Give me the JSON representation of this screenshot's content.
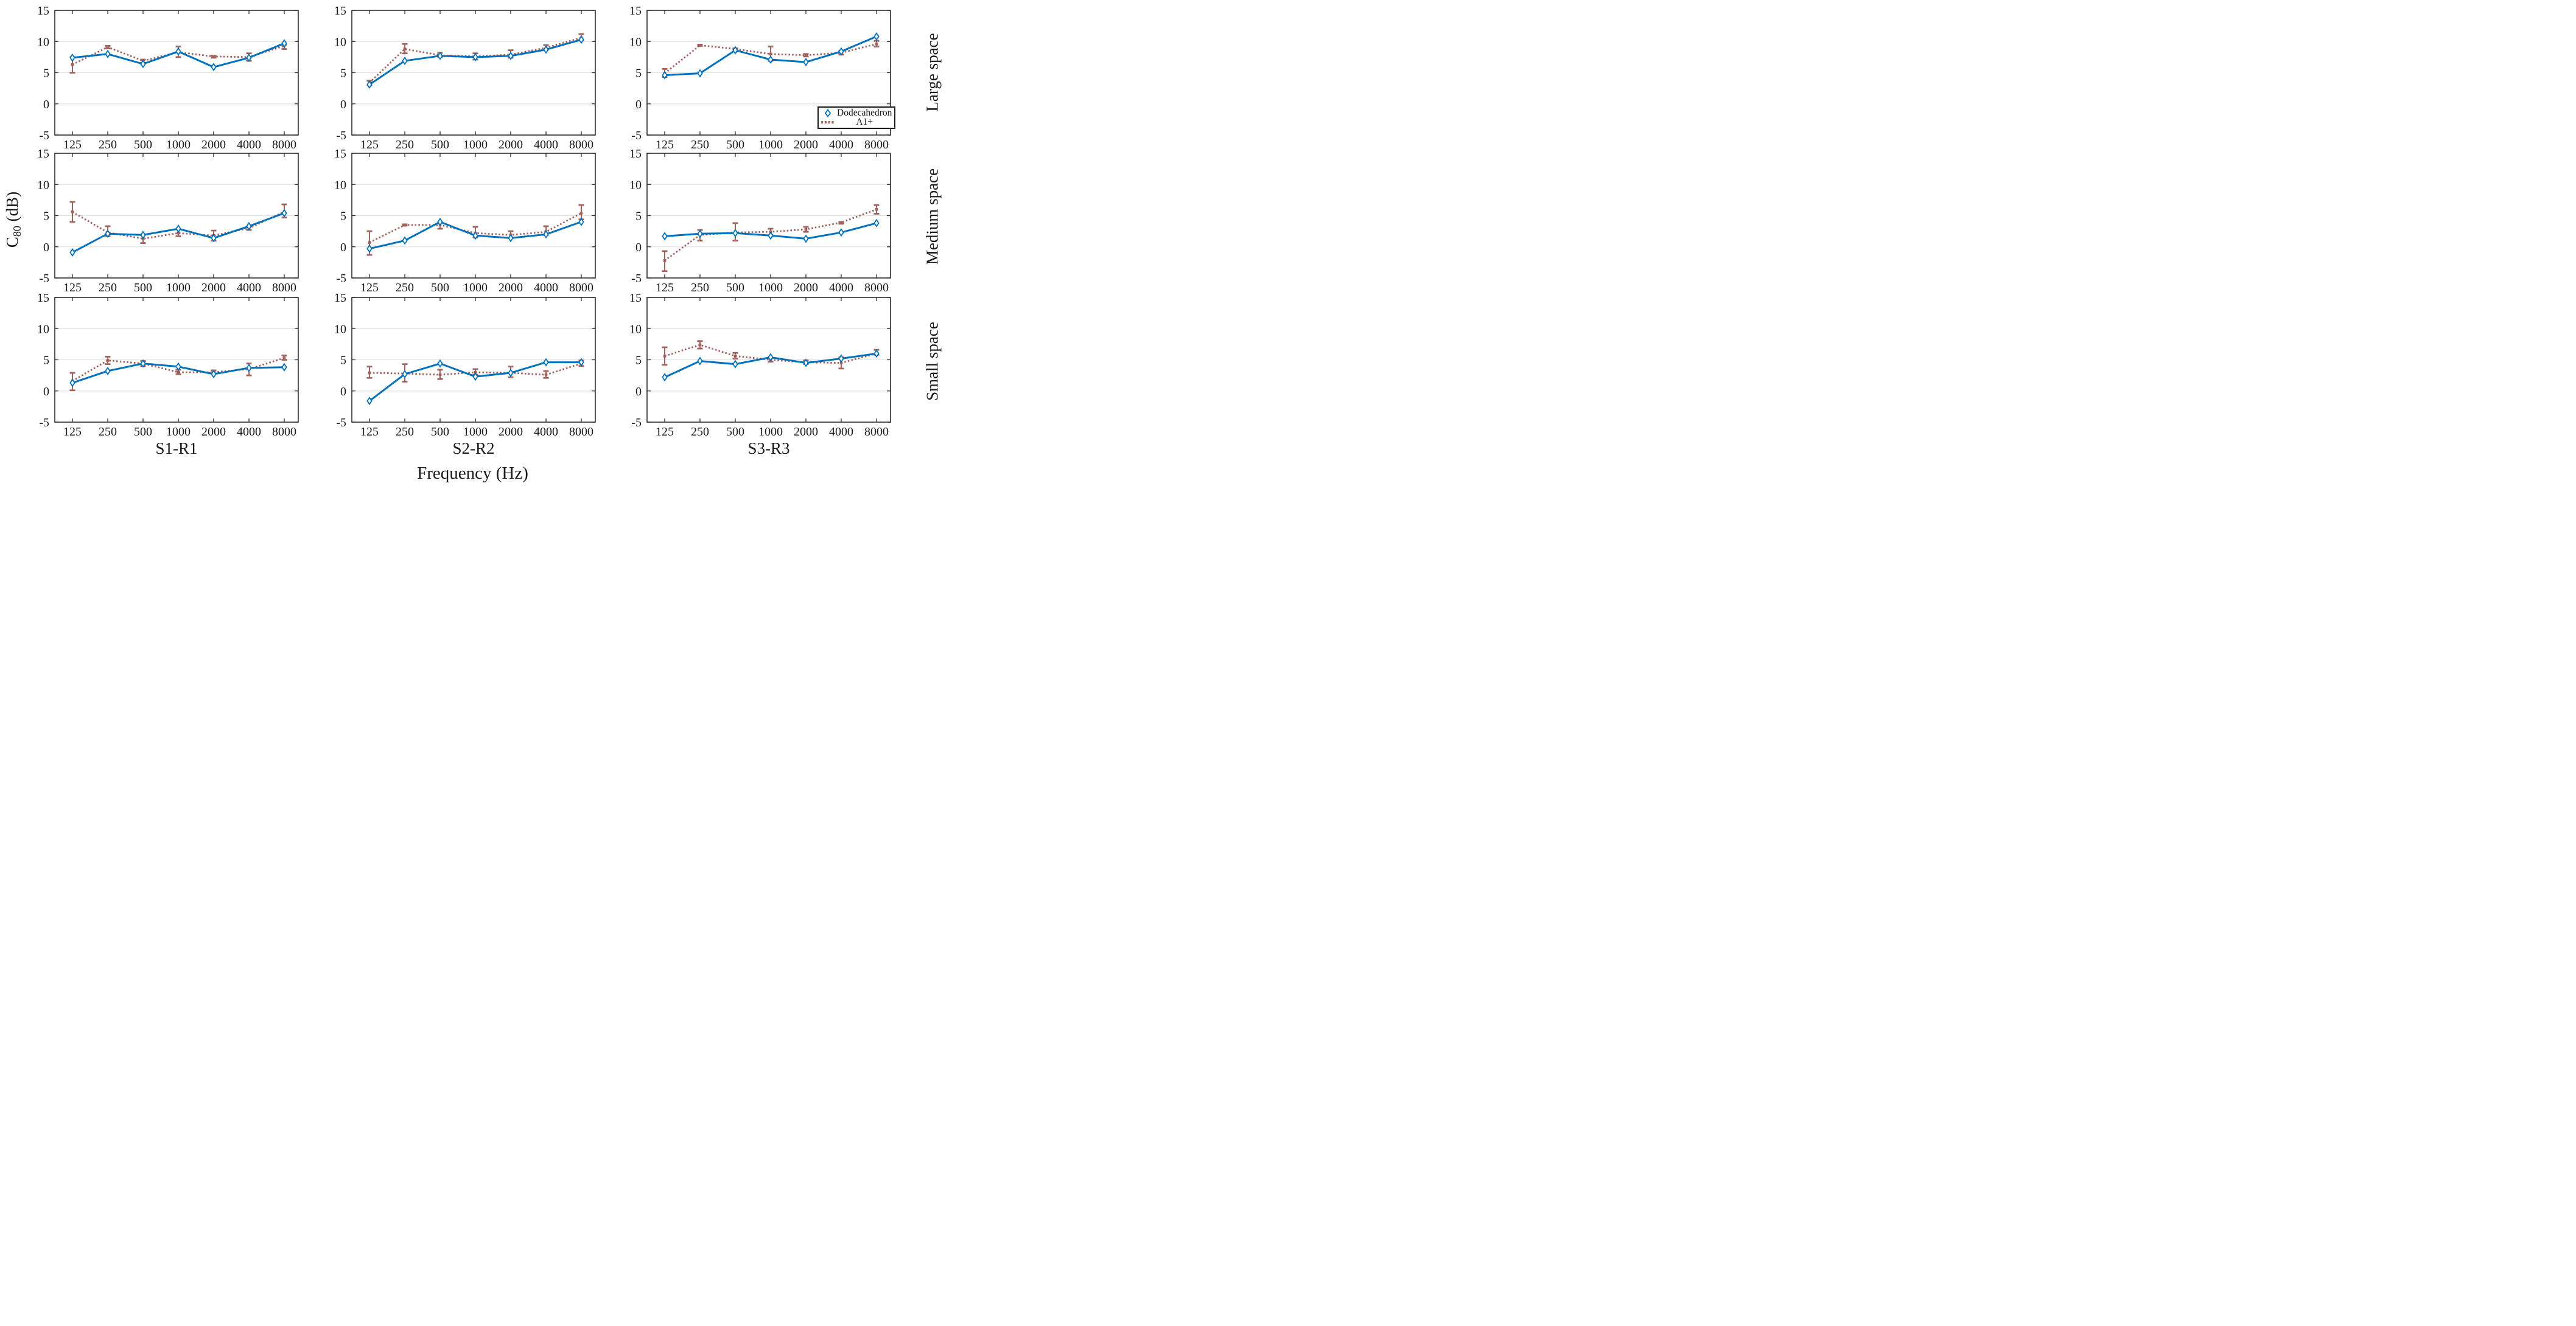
{
  "figure": {
    "ylabel": {
      "base": "C",
      "sub": "80",
      "rest": " (dB)"
    },
    "xlabel": "Frequency (Hz)",
    "col_labels": [
      "S1-R1",
      "S2-R2",
      "S3-R3"
    ],
    "row_labels": [
      "Large space",
      "Medium space",
      "Small space"
    ],
    "legend": {
      "position": "bottom-right of top-right subplot",
      "items": [
        {
          "label": "Dodecahedron",
          "marker": "open-diamond",
          "line": "solid",
          "color": "#0072BD"
        },
        {
          "label": "A1+",
          "marker": "filled-square",
          "line": "dotted",
          "color": "#A2625E"
        }
      ]
    },
    "colors": {
      "dodecahedron": "#0072BD",
      "a1plus": "#A2625E",
      "grid": "#E2E2E2",
      "spine": "#2B2B2B",
      "text": "#1A1A1A",
      "background": "#FFFFFF"
    }
  },
  "chart_data": [
    {
      "type": "line",
      "row": "Large space",
      "col": "S1-R1",
      "x_ticks": [
        "125",
        "250",
        "500",
        "1000",
        "2000",
        "4000",
        "8000"
      ],
      "y_ticks": [
        15,
        10,
        5,
        0,
        -5
      ],
      "ylim": [
        -5,
        15
      ],
      "grid": "horizontal",
      "series": [
        {
          "name": "Dodecahedron",
          "values": [
            7.4,
            8.0,
            6.4,
            8.4,
            5.9,
            7.4,
            9.7
          ]
        },
        {
          "name": "A1+",
          "values": [
            6.3,
            9.1,
            6.9,
            8.3,
            7.6,
            7.5,
            9.3
          ],
          "err_lo": [
            5.0,
            8.9,
            6.6,
            7.5,
            7.4,
            6.9,
            8.8
          ],
          "err_hi": [
            7.5,
            9.3,
            7.1,
            9.2,
            7.7,
            8.1,
            9.5
          ]
        }
      ]
    },
    {
      "type": "line",
      "row": "Large space",
      "col": "S2-R2",
      "x_ticks": [
        "125",
        "250",
        "500",
        "1000",
        "2000",
        "4000",
        "8000"
      ],
      "y_ticks": [
        15,
        10,
        5,
        0,
        -5
      ],
      "ylim": [
        -5,
        15
      ],
      "grid": "horizontal",
      "series": [
        {
          "name": "Dodecahedron",
          "values": [
            3.1,
            6.9,
            7.7,
            7.5,
            7.7,
            8.7,
            10.3
          ]
        },
        {
          "name": "A1+",
          "values": [
            3.4,
            8.8,
            7.8,
            7.6,
            7.9,
            9.0,
            10.6
          ],
          "err_lo": [
            3.0,
            8.1,
            7.5,
            7.1,
            7.4,
            8.7,
            10.2
          ],
          "err_hi": [
            3.7,
            9.6,
            8.2,
            8.1,
            8.6,
            9.4,
            11.2
          ]
        }
      ]
    },
    {
      "type": "line",
      "row": "Large space",
      "col": "S3-R3",
      "x_ticks": [
        "125",
        "250",
        "500",
        "1000",
        "2000",
        "4000",
        "8000"
      ],
      "y_ticks": [
        15,
        10,
        5,
        0,
        -5
      ],
      "ylim": [
        -5,
        15
      ],
      "grid": "horizontal",
      "series": [
        {
          "name": "Dodecahedron",
          "values": [
            4.6,
            4.9,
            8.6,
            7.1,
            6.7,
            8.4,
            10.8
          ]
        },
        {
          "name": "A1+",
          "values": [
            4.9,
            9.4,
            8.8,
            8.0,
            7.8,
            8.2,
            9.6
          ],
          "err_lo": [
            4.3,
            9.3,
            8.7,
            6.9,
            7.6,
            7.9,
            9.2
          ],
          "err_hi": [
            5.6,
            9.5,
            8.9,
            9.2,
            8.0,
            8.5,
            10.1
          ]
        }
      ]
    },
    {
      "type": "line",
      "row": "Medium space",
      "col": "S1-R1",
      "x_ticks": [
        "125",
        "250",
        "500",
        "1000",
        "2000",
        "4000",
        "8000"
      ],
      "y_ticks": [
        15,
        10,
        5,
        0,
        -5
      ],
      "ylim": [
        -5,
        15
      ],
      "grid": "horizontal",
      "series": [
        {
          "name": "Dodecahedron",
          "values": [
            -0.9,
            2.1,
            1.9,
            2.9,
            1.4,
            3.3,
            5.4
          ]
        },
        {
          "name": "A1+",
          "values": [
            5.6,
            2.3,
            1.3,
            2.2,
            1.8,
            3.0,
            5.6
          ],
          "err_lo": [
            4.0,
            1.7,
            0.6,
            1.7,
            1.0,
            2.7,
            4.7
          ],
          "err_hi": [
            7.2,
            3.3,
            1.9,
            2.8,
            2.6,
            3.2,
            6.8
          ]
        }
      ]
    },
    {
      "type": "line",
      "row": "Medium space",
      "col": "S2-R2",
      "x_ticks": [
        "125",
        "250",
        "500",
        "1000",
        "2000",
        "4000",
        "8000"
      ],
      "y_ticks": [
        15,
        10,
        5,
        0,
        -5
      ],
      "ylim": [
        -5,
        15
      ],
      "grid": "horizontal",
      "series": [
        {
          "name": "Dodecahedron",
          "values": [
            -0.3,
            1.0,
            4.0,
            1.8,
            1.4,
            2.0,
            4.0
          ]
        },
        {
          "name": "A1+",
          "values": [
            0.7,
            3.5,
            3.5,
            2.2,
            1.9,
            2.4,
            5.4
          ],
          "err_lo": [
            -1.3,
            3.4,
            2.9,
            1.5,
            1.4,
            1.9,
            4.4
          ],
          "err_hi": [
            2.5,
            3.6,
            4.0,
            3.2,
            2.5,
            3.3,
            6.7
          ]
        }
      ]
    },
    {
      "type": "line",
      "row": "Medium space",
      "col": "S3-R3",
      "x_ticks": [
        "125",
        "250",
        "500",
        "1000",
        "2000",
        "4000",
        "8000"
      ],
      "y_ticks": [
        15,
        10,
        5,
        0,
        -5
      ],
      "ylim": [
        -5,
        15
      ],
      "grid": "horizontal",
      "series": [
        {
          "name": "Dodecahedron",
          "values": [
            1.7,
            2.1,
            2.2,
            1.8,
            1.3,
            2.3,
            3.8
          ]
        },
        {
          "name": "A1+",
          "values": [
            -2.2,
            1.9,
            2.3,
            2.4,
            2.8,
            3.9,
            6.0
          ],
          "err_lo": [
            -3.9,
            1.0,
            1.0,
            1.9,
            2.4,
            3.7,
            5.3
          ],
          "err_hi": [
            -0.7,
            2.7,
            3.8,
            2.9,
            3.2,
            4.0,
            6.7
          ]
        }
      ]
    },
    {
      "type": "line",
      "row": "Small space",
      "col": "S1-R1",
      "x_ticks": [
        "125",
        "250",
        "500",
        "1000",
        "2000",
        "4000",
        "8000"
      ],
      "y_ticks": [
        15,
        10,
        5,
        0,
        -5
      ],
      "ylim": [
        -5,
        15
      ],
      "grid": "horizontal",
      "series": [
        {
          "name": "Dodecahedron",
          "values": [
            1.3,
            3.2,
            4.4,
            3.9,
            2.7,
            3.7,
            3.8
          ]
        },
        {
          "name": "A1+",
          "values": [
            1.6,
            4.9,
            4.4,
            3.0,
            3.0,
            3.5,
            5.3
          ],
          "err_lo": [
            0.1,
            4.3,
            4.0,
            2.7,
            2.8,
            2.5,
            5.0
          ],
          "err_hi": [
            2.9,
            5.5,
            4.8,
            3.4,
            3.3,
            4.4,
            5.7
          ]
        }
      ]
    },
    {
      "type": "line",
      "row": "Small space",
      "col": "S2-R2",
      "x_ticks": [
        "125",
        "250",
        "500",
        "1000",
        "2000",
        "4000",
        "8000"
      ],
      "y_ticks": [
        15,
        10,
        5,
        0,
        -5
      ],
      "ylim": [
        -5,
        15
      ],
      "grid": "horizontal",
      "series": [
        {
          "name": "Dodecahedron",
          "values": [
            -1.6,
            2.7,
            4.4,
            2.3,
            2.9,
            4.6,
            4.6
          ]
        },
        {
          "name": "A1+",
          "values": [
            2.9,
            2.8,
            2.6,
            3.0,
            2.9,
            2.6,
            4.4
          ],
          "err_lo": [
            2.1,
            1.5,
            1.9,
            2.6,
            2.2,
            2.1,
            4.0
          ],
          "err_hi": [
            3.9,
            4.3,
            3.4,
            3.5,
            3.9,
            3.2,
            4.9
          ]
        }
      ]
    },
    {
      "type": "line",
      "row": "Small space",
      "col": "S3-R3",
      "x_ticks": [
        "125",
        "250",
        "500",
        "1000",
        "2000",
        "4000",
        "8000"
      ],
      "y_ticks": [
        15,
        10,
        5,
        0,
        -5
      ],
      "ylim": [
        -5,
        15
      ],
      "grid": "horizontal",
      "series": [
        {
          "name": "Dodecahedron",
          "values": [
            2.2,
            4.8,
            4.3,
            5.4,
            4.5,
            5.2,
            6.0
          ]
        },
        {
          "name": "A1+",
          "values": [
            5.6,
            7.4,
            5.6,
            5.0,
            4.6,
            4.5,
            6.0
          ],
          "err_lo": [
            4.2,
            6.8,
            5.2,
            4.7,
            4.3,
            3.6,
            5.8
          ],
          "err_hi": [
            7.0,
            8.0,
            6.1,
            5.3,
            4.9,
            5.4,
            6.6
          ]
        }
      ]
    }
  ]
}
